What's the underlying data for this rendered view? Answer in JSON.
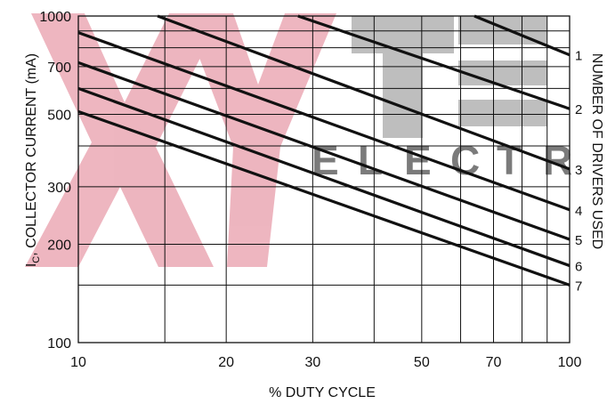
{
  "chart_data": {
    "type": "line",
    "title": "",
    "xlabel": "% DUTY CYCLE",
    "ylabel": "IC, COLLECTOR CURRENT (mA)",
    "ylabel_parts": {
      "main": "I",
      "sub": "C",
      "rest": ", COLLECTOR CURRENT (mA)"
    },
    "right_label": "NUMBER OF DRIVERS USED",
    "x_scale": "log",
    "y_scale": "log",
    "xlim": [
      10,
      100
    ],
    "ylim": [
      100,
      1000
    ],
    "grid": true,
    "x_ticks": [
      {
        "value": 10,
        "label": "10"
      },
      {
        "value": 20,
        "label": "20"
      },
      {
        "value": 30,
        "label": "30"
      },
      {
        "value": 50,
        "label": "50"
      },
      {
        "value": 70,
        "label": "70"
      },
      {
        "value": 100,
        "label": "100"
      }
    ],
    "x_grid": [
      10,
      15,
      20,
      30,
      40,
      50,
      60,
      70,
      80,
      90,
      100
    ],
    "y_ticks": [
      {
        "value": 100,
        "label": "100"
      },
      {
        "value": 200,
        "label": "200"
      },
      {
        "value": 300,
        "label": "300"
      },
      {
        "value": 500,
        "label": "500"
      },
      {
        "value": 700,
        "label": "700"
      },
      {
        "value": 1000,
        "label": "1000"
      }
    ],
    "y_grid": [
      100,
      150,
      200,
      300,
      400,
      500,
      600,
      700,
      800,
      900,
      1000
    ],
    "series": [
      {
        "label": "1",
        "x": [
          64,
          100
        ],
        "y": [
          1000,
          760
        ]
      },
      {
        "label": "2",
        "x": [
          28,
          100
        ],
        "y": [
          1000,
          520
        ]
      },
      {
        "label": "3",
        "x": [
          14.5,
          100
        ],
        "y": [
          1000,
          340
        ]
      },
      {
        "label": "4",
        "x": [
          10,
          100
        ],
        "y": [
          890,
          255
        ]
      },
      {
        "label": "5",
        "x": [
          10,
          100
        ],
        "y": [
          720,
          207
        ]
      },
      {
        "label": "6",
        "x": [
          10,
          100
        ],
        "y": [
          600,
          172
        ]
      },
      {
        "label": "7",
        "x": [
          10,
          100
        ],
        "y": [
          510,
          150
        ]
      }
    ]
  },
  "watermark": {
    "letters": [
      "E",
      "L",
      "E",
      "C",
      "T",
      "R"
    ]
  }
}
